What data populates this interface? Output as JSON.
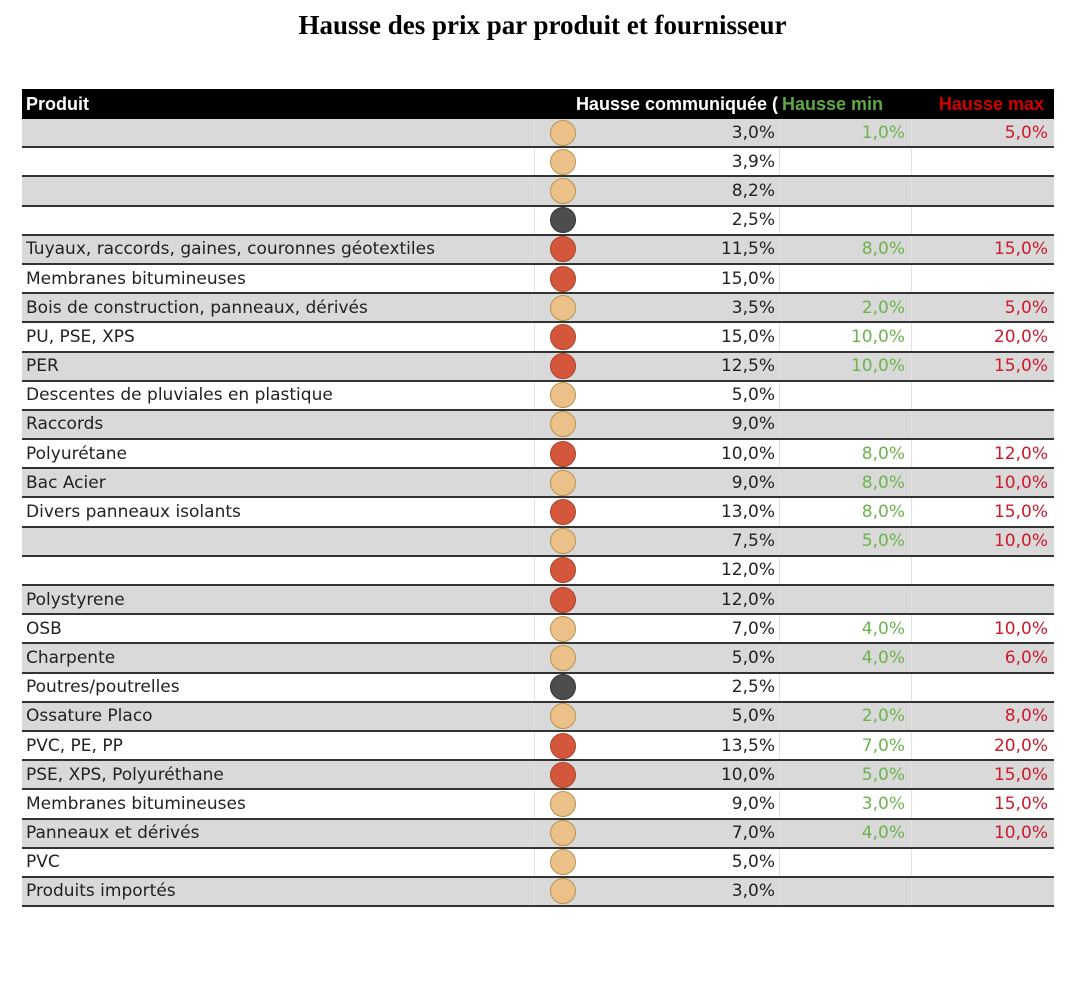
{
  "title": "Hausse des prix par produit et fournisseur",
  "colors": {
    "header_bg": "#000000",
    "min_color": "#6cb34e",
    "max_color": "#cc1a2b",
    "row_alt": "#d9d9d9",
    "indicator": {
      "moderate": {
        "fill": "#ebc189",
        "border": "#b8934f"
      },
      "high": {
        "fill": "#d5573b",
        "border": "#a8432d"
      },
      "low": {
        "fill": "#4d4d4d",
        "border": "#333333"
      }
    }
  },
  "table": {
    "headers": {
      "produit": "Produit",
      "hausse_communiquee": "Hausse communiquée (",
      "hausse_min": "Hausse min",
      "hausse_max": "Hausse max"
    },
    "rows": [
      {
        "produit": "",
        "indicator": "moderate",
        "hausse": "3,0%",
        "min": "1,0%",
        "max": "5,0%"
      },
      {
        "produit": "",
        "indicator": "moderate",
        "hausse": "3,9%",
        "min": "",
        "max": ""
      },
      {
        "produit": "",
        "indicator": "moderate",
        "hausse": "8,2%",
        "min": "",
        "max": ""
      },
      {
        "produit": "",
        "indicator": "low",
        "hausse": "2,5%",
        "min": "",
        "max": ""
      },
      {
        "produit": "Tuyaux, raccords, gaines, couronnes géotextiles",
        "indicator": "high",
        "hausse": "11,5%",
        "min": "8,0%",
        "max": "15,0%"
      },
      {
        "produit": "Membranes bitumineuses",
        "indicator": "high",
        "hausse": "15,0%",
        "min": "",
        "max": ""
      },
      {
        "produit": "Bois de construction, panneaux, dérivés",
        "indicator": "moderate",
        "hausse": "3,5%",
        "min": "2,0%",
        "max": "5,0%"
      },
      {
        "produit": "PU, PSE, XPS",
        "indicator": "high",
        "hausse": "15,0%",
        "min": "10,0%",
        "max": "20,0%"
      },
      {
        "produit": "PER",
        "indicator": "high",
        "hausse": "12,5%",
        "min": "10,0%",
        "max": "15,0%"
      },
      {
        "produit": "Descentes de pluviales en plastique",
        "indicator": "moderate",
        "hausse": "5,0%",
        "min": "",
        "max": ""
      },
      {
        "produit": "Raccords",
        "indicator": "moderate",
        "hausse": "9,0%",
        "min": "",
        "max": ""
      },
      {
        "produit": "Polyurétane",
        "indicator": "high",
        "hausse": "10,0%",
        "min": "8,0%",
        "max": "12,0%"
      },
      {
        "produit": "Bac Acier",
        "indicator": "moderate",
        "hausse": "9,0%",
        "min": "8,0%",
        "max": "10,0%"
      },
      {
        "produit": "Divers panneaux isolants",
        "indicator": "high",
        "hausse": "13,0%",
        "min": "8,0%",
        "max": "15,0%"
      },
      {
        "produit": "",
        "indicator": "moderate",
        "hausse": "7,5%",
        "min": "5,0%",
        "max": "10,0%"
      },
      {
        "produit": "",
        "indicator": "high",
        "hausse": "12,0%",
        "min": "",
        "max": ""
      },
      {
        "produit": "Polystyrene",
        "indicator": "high",
        "hausse": "12,0%",
        "min": "",
        "max": ""
      },
      {
        "produit": "OSB",
        "indicator": "moderate",
        "hausse": "7,0%",
        "min": "4,0%",
        "max": "10,0%"
      },
      {
        "produit": "Charpente",
        "indicator": "moderate",
        "hausse": "5,0%",
        "min": "4,0%",
        "max": "6,0%"
      },
      {
        "produit": "Poutres/poutrelles",
        "indicator": "low",
        "hausse": "2,5%",
        "min": "",
        "max": ""
      },
      {
        "produit": "Ossature Placo",
        "indicator": "moderate",
        "hausse": "5,0%",
        "min": "2,0%",
        "max": "8,0%"
      },
      {
        "produit": "PVC, PE, PP",
        "indicator": "high",
        "hausse": "13,5%",
        "min": "7,0%",
        "max": "20,0%"
      },
      {
        "produit": "PSE, XPS, Polyuréthane",
        "indicator": "high",
        "hausse": "10,0%",
        "min": "5,0%",
        "max": "15,0%"
      },
      {
        "produit": "Membranes bitumineuses",
        "indicator": "moderate",
        "hausse": "9,0%",
        "min": "3,0%",
        "max": "15,0%"
      },
      {
        "produit": "Panneaux et dérivés",
        "indicator": "moderate",
        "hausse": "7,0%",
        "min": "4,0%",
        "max": "10,0%"
      },
      {
        "produit": "PVC",
        "indicator": "moderate",
        "hausse": "5,0%",
        "min": "",
        "max": ""
      },
      {
        "produit": "Produits importés",
        "indicator": "moderate",
        "hausse": "3,0%",
        "min": "",
        "max": ""
      }
    ]
  }
}
